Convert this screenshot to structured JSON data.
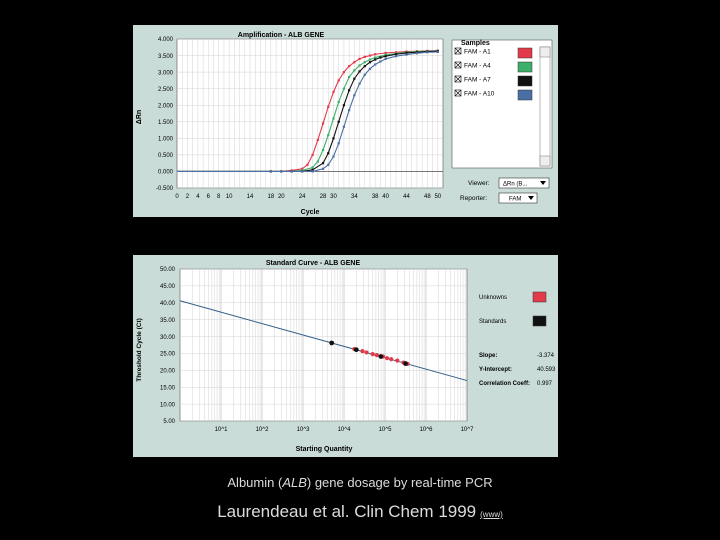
{
  "chart_data": [
    {
      "type": "line",
      "title": "Amplification - ALB GENE",
      "xlabel": "Cycle",
      "ylabel": "ΔRn",
      "xlim": [
        0,
        51
      ],
      "ylim": [
        -0.5,
        4.0
      ],
      "x_ticks": [
        "0",
        "2",
        "4",
        "6",
        "8",
        "10",
        "14",
        "18",
        "20",
        "24",
        "28",
        "30",
        "34",
        "38",
        "40",
        "44",
        "48",
        "50"
      ],
      "y_ticks": [
        "4.000",
        "3.500",
        "3.000",
        "2.500",
        "2.000",
        "1.500",
        "1.000",
        "0.500",
        "0.000",
        "-0.500"
      ],
      "grid": true,
      "legend_title": "Samples",
      "series": [
        {
          "name": "FAM - A1",
          "color": "#e23a4a",
          "x": [
            0,
            10,
            18,
            20,
            22,
            24,
            25,
            26,
            27,
            28,
            29,
            30,
            31,
            32,
            33,
            34,
            35,
            36,
            37,
            38,
            40,
            42,
            44,
            46,
            48,
            50
          ],
          "values": [
            0,
            0,
            0,
            0,
            0.03,
            0.08,
            0.2,
            0.5,
            0.95,
            1.45,
            1.95,
            2.4,
            2.75,
            3.0,
            3.18,
            3.3,
            3.4,
            3.46,
            3.5,
            3.54,
            3.58,
            3.6,
            3.62,
            3.63,
            3.64,
            3.65
          ]
        },
        {
          "name": "FAM - A4",
          "color": "#3cb06a",
          "x": [
            0,
            10,
            18,
            20,
            22,
            24,
            26,
            27,
            28,
            29,
            30,
            31,
            32,
            33,
            34,
            35,
            36,
            37,
            38,
            40,
            42,
            44,
            46,
            48,
            50
          ],
          "values": [
            0,
            0,
            0,
            0,
            0,
            0.03,
            0.12,
            0.3,
            0.65,
            1.1,
            1.6,
            2.1,
            2.5,
            2.85,
            3.05,
            3.2,
            3.3,
            3.38,
            3.44,
            3.52,
            3.56,
            3.6,
            3.62,
            3.63,
            3.64
          ]
        },
        {
          "name": "FAM - A7",
          "color": "#111111",
          "x": [
            0,
            10,
            18,
            20,
            22,
            24,
            26,
            28,
            29,
            30,
            31,
            32,
            33,
            34,
            35,
            36,
            37,
            38,
            39,
            40,
            42,
            44,
            46,
            48,
            50
          ],
          "values": [
            0,
            0,
            0,
            0,
            0,
            0,
            0.05,
            0.25,
            0.55,
            1.0,
            1.5,
            2.0,
            2.45,
            2.8,
            3.02,
            3.18,
            3.3,
            3.38,
            3.44,
            3.48,
            3.54,
            3.58,
            3.6,
            3.62,
            3.63
          ]
        },
        {
          "name": "FAM - A10",
          "color": "#4a6fa5",
          "x": [
            0,
            10,
            18,
            20,
            22,
            24,
            26,
            28,
            29,
            30,
            31,
            32,
            33,
            34,
            35,
            36,
            37,
            38,
            39,
            40,
            42,
            44,
            46,
            48,
            50
          ],
          "values": [
            0,
            0,
            0,
            0,
            0,
            0,
            0,
            0.08,
            0.2,
            0.45,
            0.85,
            1.35,
            1.85,
            2.3,
            2.65,
            2.92,
            3.1,
            3.23,
            3.32,
            3.4,
            3.48,
            3.53,
            3.57,
            3.6,
            3.61
          ]
        }
      ],
      "viewer_label": "Viewer:",
      "viewer_value": "ΔRn (B...",
      "reporter_label": "Reporter:",
      "reporter_value": "FAM"
    },
    {
      "type": "scatter",
      "title": "Standard Curve - ALB GENE",
      "xlabel": "Starting Quantity",
      "ylabel": "Threshold Cycle (Ct)",
      "xscale": "log",
      "xlim": [
        0,
        7
      ],
      "ylim": [
        5,
        50
      ],
      "x_ticks": [
        "10^1",
        "10^2",
        "10^3",
        "10^4",
        "10^5",
        "10^6",
        "10^7"
      ],
      "y_ticks": [
        "50.00",
        "45.00",
        "40.00",
        "35.00",
        "30.00",
        "25.00",
        "20.00",
        "15.00",
        "10.00",
        "5.00"
      ],
      "grid": true,
      "regression": {
        "slope": -3.374,
        "intercept": 40.593
      },
      "series": [
        {
          "name": "Unknowns",
          "color": "#e23a4a",
          "x": [
            4.25,
            4.45,
            4.55,
            4.7,
            4.8,
            4.95,
            5.05,
            5.15,
            5.3,
            5.45,
            5.55
          ],
          "values": [
            26.3,
            25.7,
            25.3,
            24.8,
            24.5,
            24.1,
            23.6,
            23.3,
            22.9,
            22.3,
            21.9
          ]
        },
        {
          "name": "Standards",
          "color": "#111111",
          "x": [
            3.7,
            4.3,
            4.9,
            5.5
          ],
          "values": [
            28.1,
            26.1,
            24.1,
            22.0
          ]
        }
      ],
      "stats": [
        {
          "label": "Slope:",
          "value": "-3.374"
        },
        {
          "label": "Y-Intercept:",
          "value": "40.593"
        },
        {
          "label": "Correlation Coeff:",
          "value": "0.997"
        }
      ]
    }
  ],
  "caption": {
    "pre": "Albumin (",
    "italic": "ALB",
    "post": ") gene dosage by real-time PCR"
  },
  "citation": {
    "text": "Laurendeau et al. Clin Chem 1999",
    "link": "(www)"
  }
}
